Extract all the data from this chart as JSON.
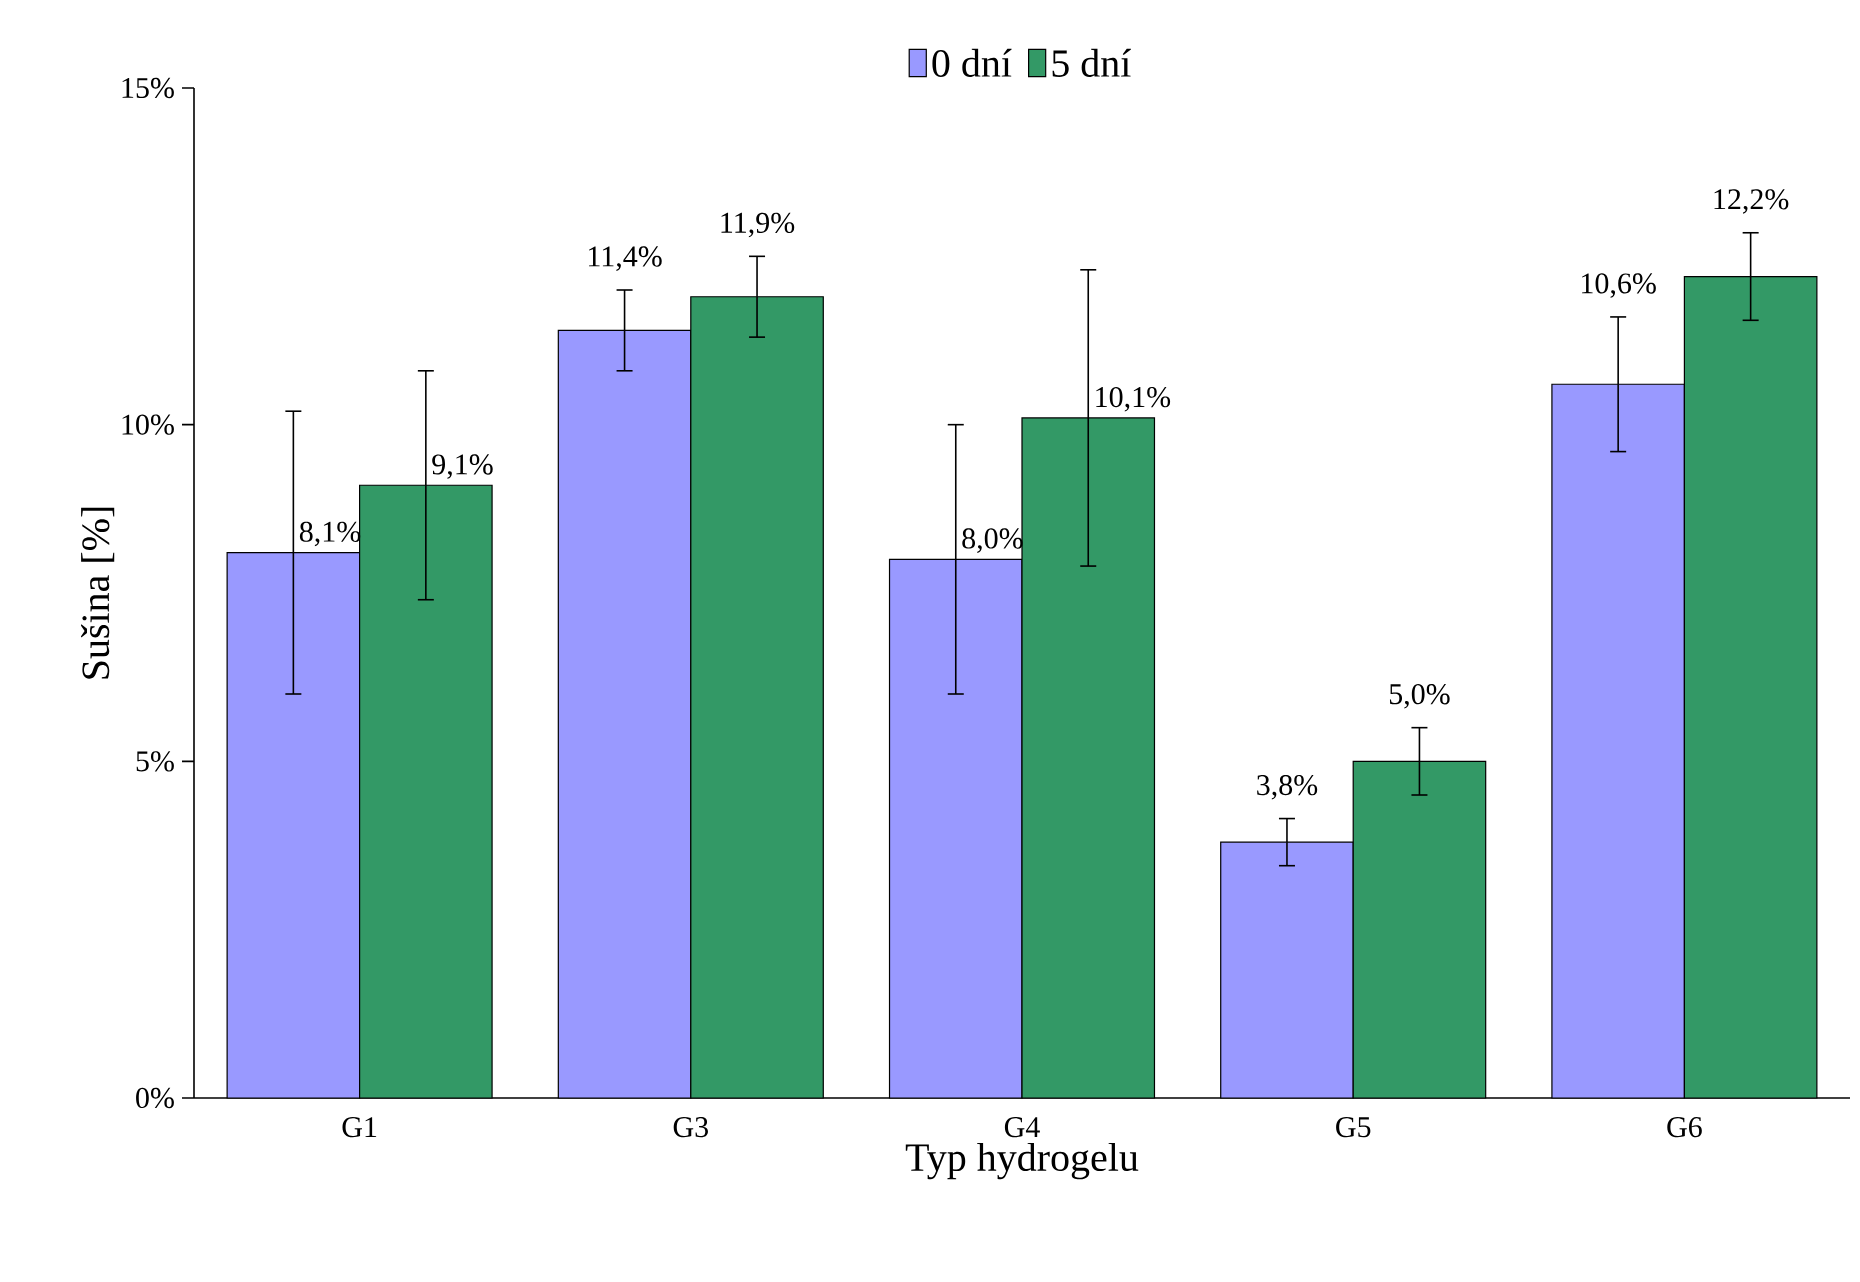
{
  "chart_data": {
    "type": "bar",
    "xlabel": "Typ hydrogelu",
    "ylabel": "Sušina [%]",
    "categories": [
      "G1",
      "G3",
      "G4",
      "G5",
      "G6"
    ],
    "series": [
      {
        "name": "0 dní",
        "color": "#9999ff",
        "values": [
          8.1,
          11.4,
          8.0,
          3.8,
          10.6
        ],
        "errors": [
          2.1,
          0.6,
          2.0,
          0.35,
          1.0
        ],
        "value_labels": [
          "8,1%",
          "11,4%",
          "8,0%",
          "3,8%",
          "10,6%"
        ]
      },
      {
        "name": "5 dní",
        "color": "#339966",
        "values": [
          9.1,
          11.9,
          10.1,
          5.0,
          12.2
        ],
        "errors": [
          1.7,
          0.6,
          2.2,
          0.5,
          0.65
        ],
        "value_labels": [
          "9,1%",
          "11,9%",
          "10,1%",
          "5,0%",
          "12,2%"
        ]
      }
    ],
    "ylim": [
      0,
      15
    ],
    "yticks": [
      {
        "value": 0,
        "label": "0%"
      },
      {
        "value": 5,
        "label": "5%"
      },
      {
        "value": 10,
        "label": "10%"
      },
      {
        "value": 15,
        "label": "15%"
      }
    ],
    "legend": "top",
    "grid": false
  }
}
